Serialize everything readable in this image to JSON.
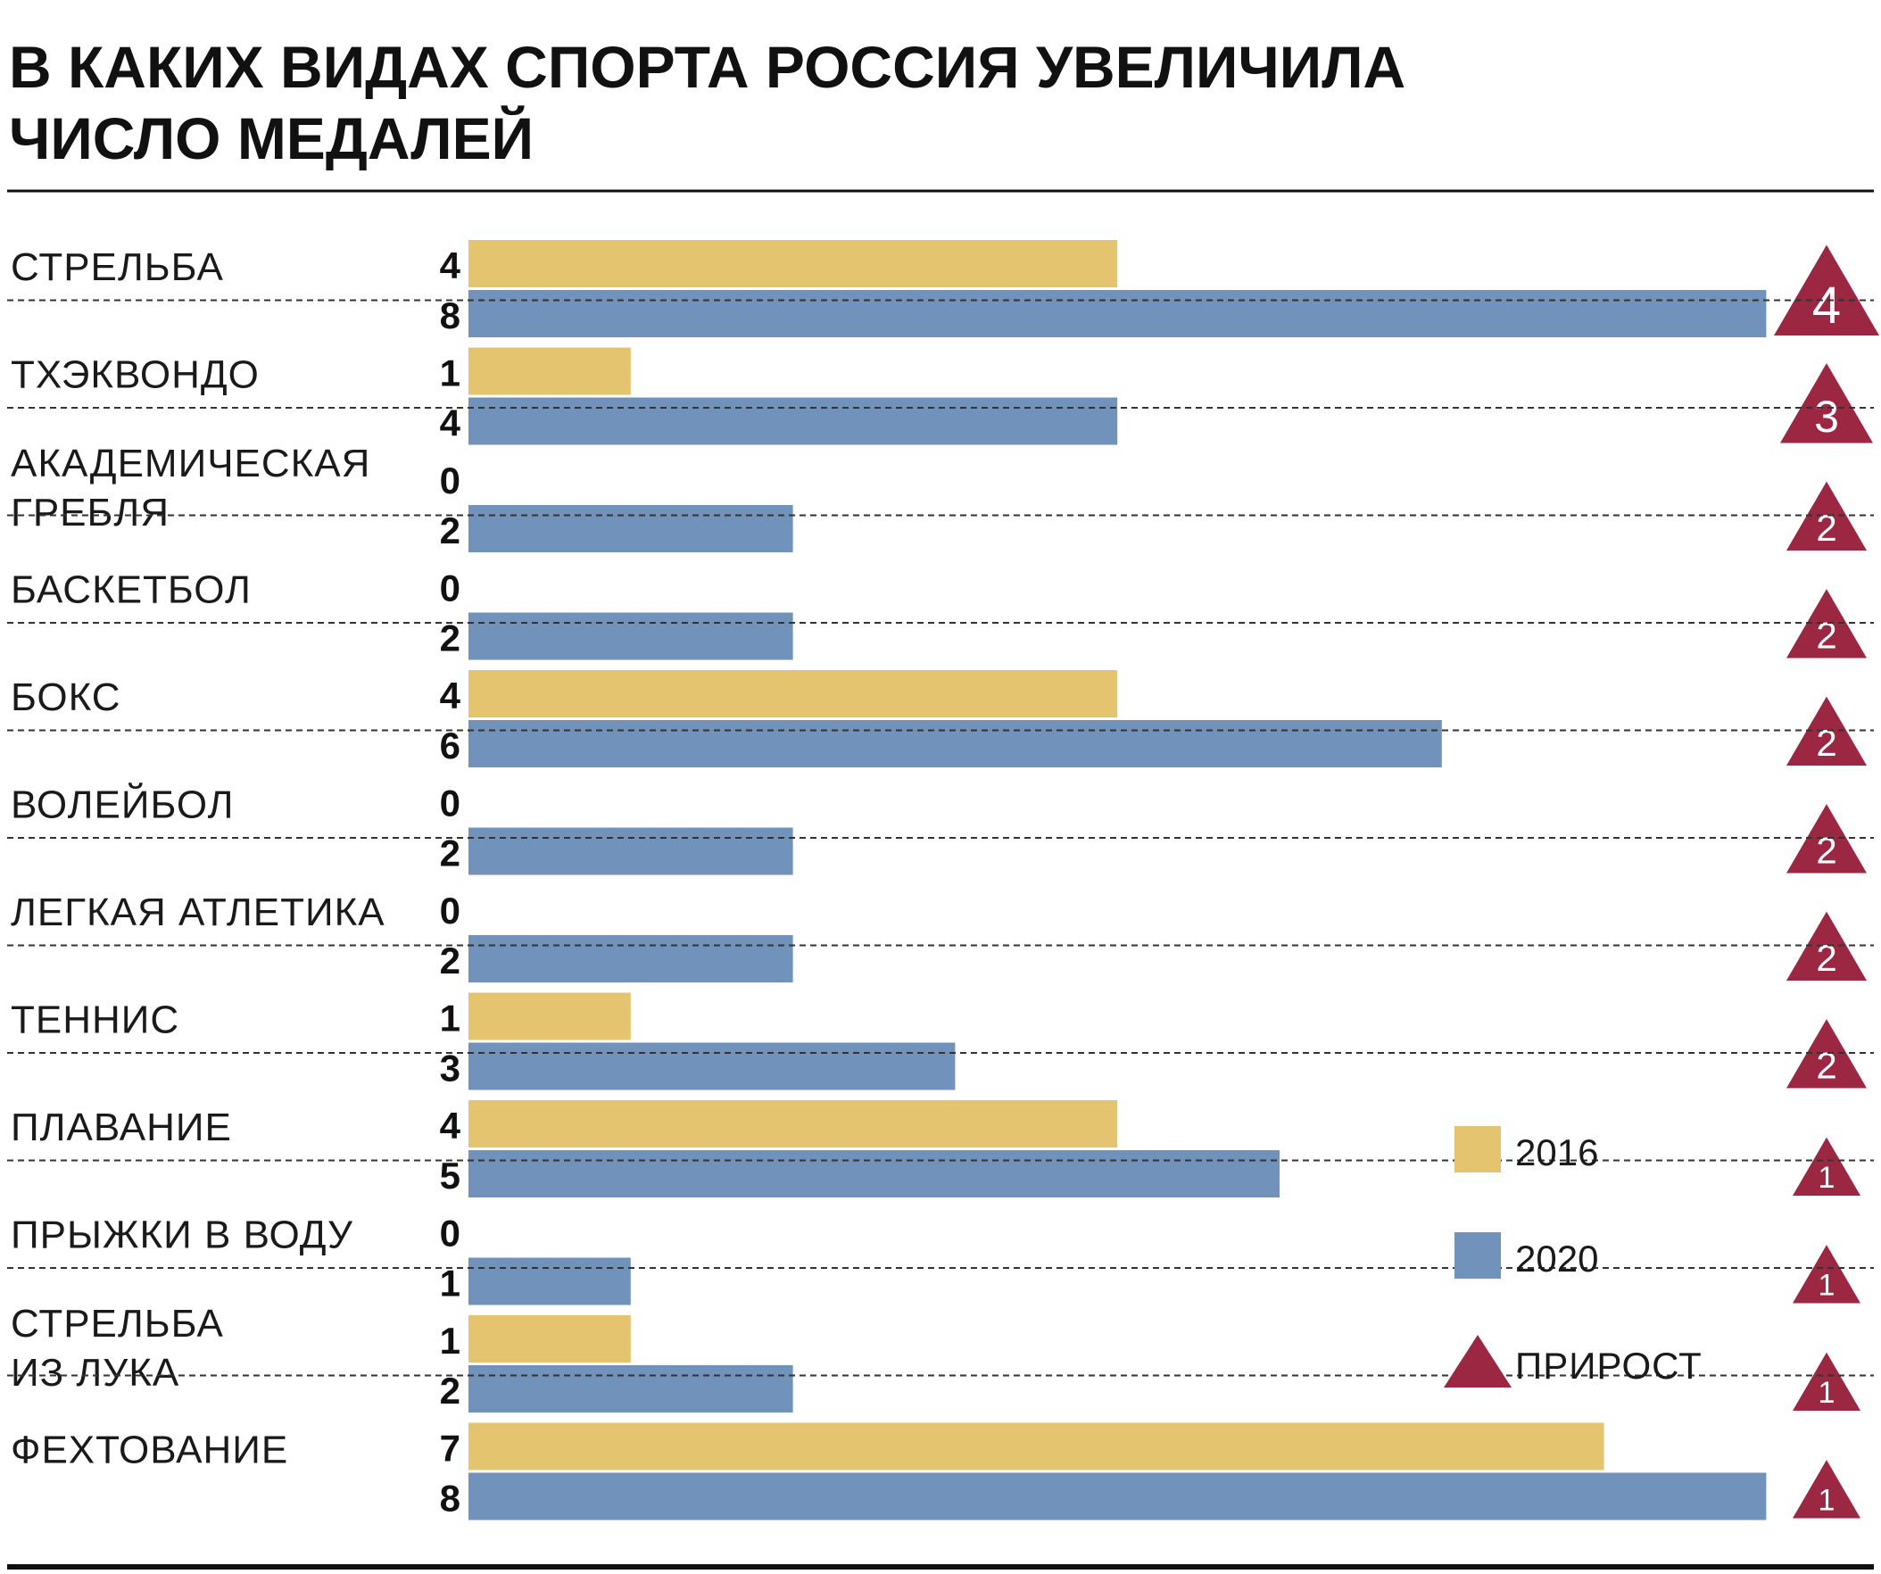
{
  "title_lines": [
    "В КАКИХ ВИДАХ СПОРТА РОССИЯ УВЕЛИЧИЛА",
    "ЧИСЛО МЕДАЛЕЙ"
  ],
  "chart_data": {
    "type": "bar",
    "orientation": "horizontal",
    "title": "В КАКИХ ВИДАХ СПОРТА РОССИЯ УВЕЛИЧИЛА ЧИСЛО МЕДАЛЕЙ",
    "categories": [
      [
        "СТРЕЛЬБА"
      ],
      [
        "ТХЭКВОНДО"
      ],
      [
        "АКАДЕМИЧЕСКАЯ",
        "ГРЕБЛЯ"
      ],
      [
        "БАСКЕТБОЛ"
      ],
      [
        "БОКС"
      ],
      [
        "ВОЛЕЙБОЛ"
      ],
      [
        "ЛЕГКАЯ АТЛЕТИКА"
      ],
      [
        "ТЕННИС"
      ],
      [
        "ПЛАВАНИЕ"
      ],
      [
        "ПРЫЖКИ В ВОДУ"
      ],
      [
        "СТРЕЛЬБА",
        "ИЗ ЛУКА"
      ],
      [
        "ФЕХТОВАНИЕ"
      ]
    ],
    "series": [
      {
        "name": "2016",
        "color": "#e4c46e",
        "values": [
          4,
          1,
          0,
          0,
          4,
          0,
          0,
          1,
          4,
          0,
          1,
          7
        ]
      },
      {
        "name": "2020",
        "color": "#7092bb",
        "values": [
          8,
          4,
          2,
          2,
          6,
          2,
          2,
          3,
          5,
          1,
          2,
          8
        ]
      },
      {
        "name": "ПРИРОСТ",
        "color": "#9b2743",
        "marker": "triangle",
        "values": [
          4,
          3,
          2,
          2,
          2,
          2,
          2,
          2,
          1,
          1,
          1,
          1
        ]
      }
    ],
    "xlim": [
      0,
      8
    ],
    "grid": false,
    "legend_position": "right"
  }
}
